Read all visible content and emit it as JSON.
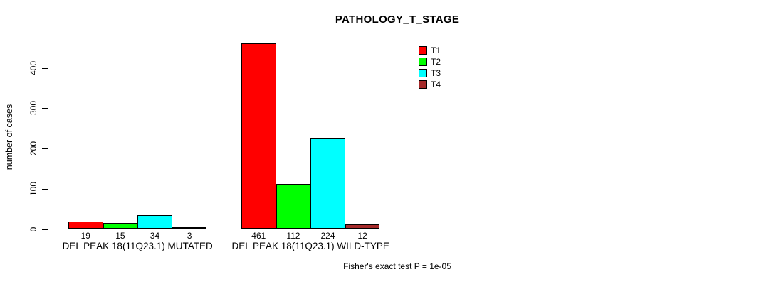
{
  "chart_data": {
    "type": "bar",
    "title": "PATHOLOGY_T_STAGE",
    "xlabel": "",
    "ylabel": "number of cases",
    "ylim": [
      0,
      400
    ],
    "yticks": [
      0,
      100,
      200,
      300,
      400
    ],
    "grid": false,
    "legend_position": "top-right",
    "bar_value_labels_shown": true,
    "categories": [
      "DEL PEAK 18(11Q23.1) MUTATED",
      "DEL PEAK 18(11Q23.1) WILD-TYPE"
    ],
    "series": [
      {
        "name": "T1",
        "color": "#ff0000",
        "values": [
          19,
          461
        ]
      },
      {
        "name": "T2",
        "color": "#00ff00",
        "values": [
          15,
          112
        ]
      },
      {
        "name": "T3",
        "color": "#00ffff",
        "values": [
          34,
          224
        ]
      },
      {
        "name": "T4",
        "color": "#a52a2a",
        "values": [
          3,
          12
        ]
      }
    ],
    "footer": "Fisher's exact test P = 1e-05"
  },
  "colors": {
    "axis": "#000000",
    "background": "#ffffff",
    "text": "#000000"
  }
}
